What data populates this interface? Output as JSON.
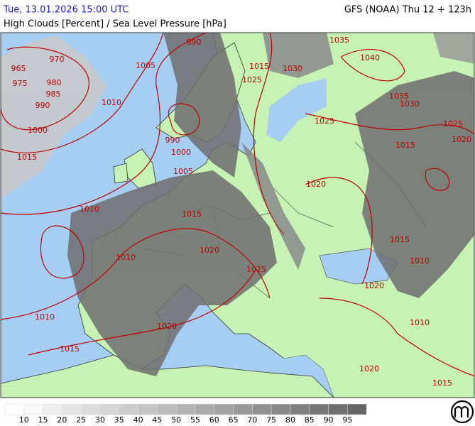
{
  "header": {
    "left": "Tue, 13.01.2026 15:00 UTC",
    "right": "GFS (NOAA) Thu 12 + 123h",
    "subtitle": "High Clouds [Percent] / Sea Level Pressure [hPa]"
  },
  "isobar_labels": [
    "970",
    "965",
    "975",
    "980",
    "985",
    "990",
    "1000",
    "1005",
    "1010",
    "1015",
    "990",
    "990",
    "1000",
    "1005",
    "1010",
    "1015",
    "1010",
    "1020",
    "1025",
    "1010",
    "1015",
    "1020",
    "1035",
    "1040",
    "1030",
    "1015",
    "1025",
    "1035",
    "1030",
    "1025",
    "1025",
    "1020",
    "1015",
    "1020",
    "1015",
    "1010",
    "1020",
    "1010",
    "1020",
    "1015"
  ],
  "legend": {
    "labels": [
      "10",
      "15",
      "20",
      "25",
      "30",
      "35",
      "40",
      "45",
      "50",
      "55",
      "60",
      "65",
      "70",
      "75",
      "80",
      "85",
      "90",
      "95"
    ]
  }
}
